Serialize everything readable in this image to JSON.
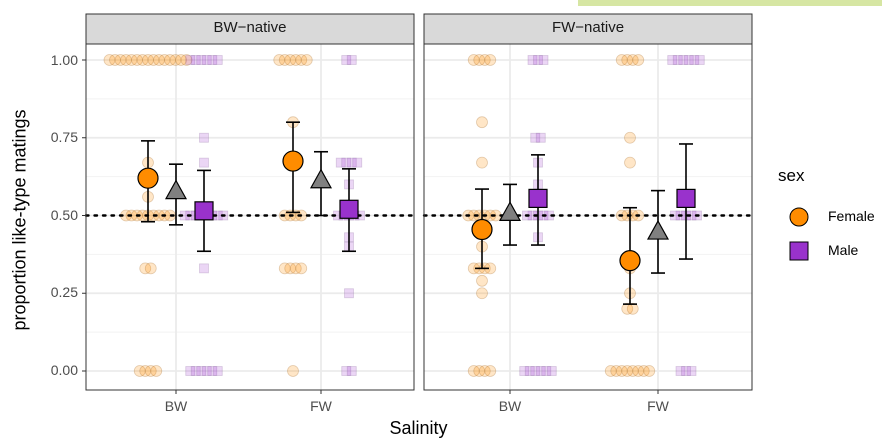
{
  "chart_data": {
    "type": "scatter",
    "title": "",
    "xlabel": "Salinity",
    "ylabel": "proportion like-type matings",
    "ylim": [
      0,
      1
    ],
    "yticks": [
      "0.00",
      "0.25",
      "0.50",
      "0.75",
      "1.00"
    ],
    "reference_line": 0.5,
    "grid": true,
    "legend_position": "right",
    "legend": {
      "title": "sex",
      "entries": [
        {
          "name": "Female",
          "color": "#ff8c00",
          "shape": "circle"
        },
        {
          "name": "Male",
          "color": "#9932cc",
          "shape": "square"
        }
      ]
    },
    "overall_color": "#808080",
    "panels": [
      {
        "label": "BW−native",
        "categories": [
          "BW",
          "FW"
        ],
        "groups": [
          {
            "x": "BW",
            "female": {
              "mean": 0.62,
              "lower": 0.48,
              "upper": 0.74,
              "points": [
                1,
                1,
                1,
                1,
                1,
                1,
                1,
                1,
                1,
                1,
                1,
                1,
                1,
                1,
                1,
                0.67,
                0.56,
                0.5,
                0.5,
                0.5,
                0.5,
                0.5,
                0.5,
                0.5,
                0.5,
                0.5,
                0.33,
                0.33,
                0,
                0,
                0,
                0
              ]
            },
            "overall": {
              "mean": 0.58,
              "lower": 0.47,
              "upper": 0.665
            },
            "male": {
              "mean": 0.515,
              "lower": 0.385,
              "upper": 0.645,
              "points": [
                1,
                1,
                1,
                1,
                1,
                1,
                0.75,
                0.67,
                0.5,
                0.5,
                0.5,
                0.5,
                0.5,
                0.5,
                0.5,
                0.5,
                0.33,
                0,
                0,
                0,
                0,
                0,
                0
              ]
            }
          },
          {
            "x": "FW",
            "female": {
              "mean": 0.675,
              "lower": 0.51,
              "upper": 0.8,
              "points": [
                1,
                1,
                1,
                1,
                1,
                1,
                0.8,
                0.67,
                0.5,
                0.5,
                0.5,
                0.5,
                0.33,
                0.33,
                0.33,
                0.33,
                0
              ]
            },
            "overall": {
              "mean": 0.615,
              "lower": 0.5,
              "upper": 0.705
            },
            "male": {
              "mean": 0.52,
              "lower": 0.385,
              "upper": 0.65,
              "points": [
                1,
                1,
                0.67,
                0.67,
                0.67,
                0.67,
                0.6,
                0.5,
                0.5,
                0.5,
                0.5,
                0.5,
                0.43,
                0.4,
                0.25,
                0,
                0
              ]
            }
          }
        ]
      },
      {
        "label": "FW−native",
        "categories": [
          "BW",
          "FW"
        ],
        "groups": [
          {
            "x": "BW",
            "female": {
              "mean": 0.455,
              "lower": 0.33,
              "upper": 0.585,
              "points": [
                1,
                1,
                1,
                1,
                0.8,
                0.67,
                0.5,
                0.5,
                0.5,
                0.5,
                0.5,
                0.5,
                0.4,
                0.33,
                0.33,
                0.33,
                0.33,
                0.29,
                0.25,
                0,
                0,
                0,
                0
              ]
            },
            "overall": {
              "mean": 0.51,
              "lower": 0.405,
              "upper": 0.6
            },
            "male": {
              "mean": 0.555,
              "lower": 0.405,
              "upper": 0.695,
              "points": [
                1,
                1,
                1,
                0.75,
                0.75,
                0.67,
                0.6,
                0.5,
                0.5,
                0.5,
                0.5,
                0.5,
                0.43,
                0,
                0,
                0,
                0,
                0,
                0
              ]
            }
          },
          {
            "x": "FW",
            "female": {
              "mean": 0.355,
              "lower": 0.215,
              "upper": 0.525,
              "points": [
                1,
                1,
                1,
                1,
                0.75,
                0.67,
                0.5,
                0.5,
                0.5,
                0.5,
                0.33,
                0.25,
                0.2,
                0.2,
                0,
                0,
                0,
                0,
                0,
                0,
                0,
                0
              ]
            },
            "overall": {
              "mean": 0.45,
              "lower": 0.315,
              "upper": 0.58
            },
            "male": {
              "mean": 0.555,
              "lower": 0.36,
              "upper": 0.73,
              "points": [
                1,
                1,
                1,
                1,
                1,
                1,
                0.5,
                0.5,
                0.5,
                0.5,
                0.5,
                0,
                0,
                0
              ]
            }
          }
        ]
      }
    ]
  }
}
